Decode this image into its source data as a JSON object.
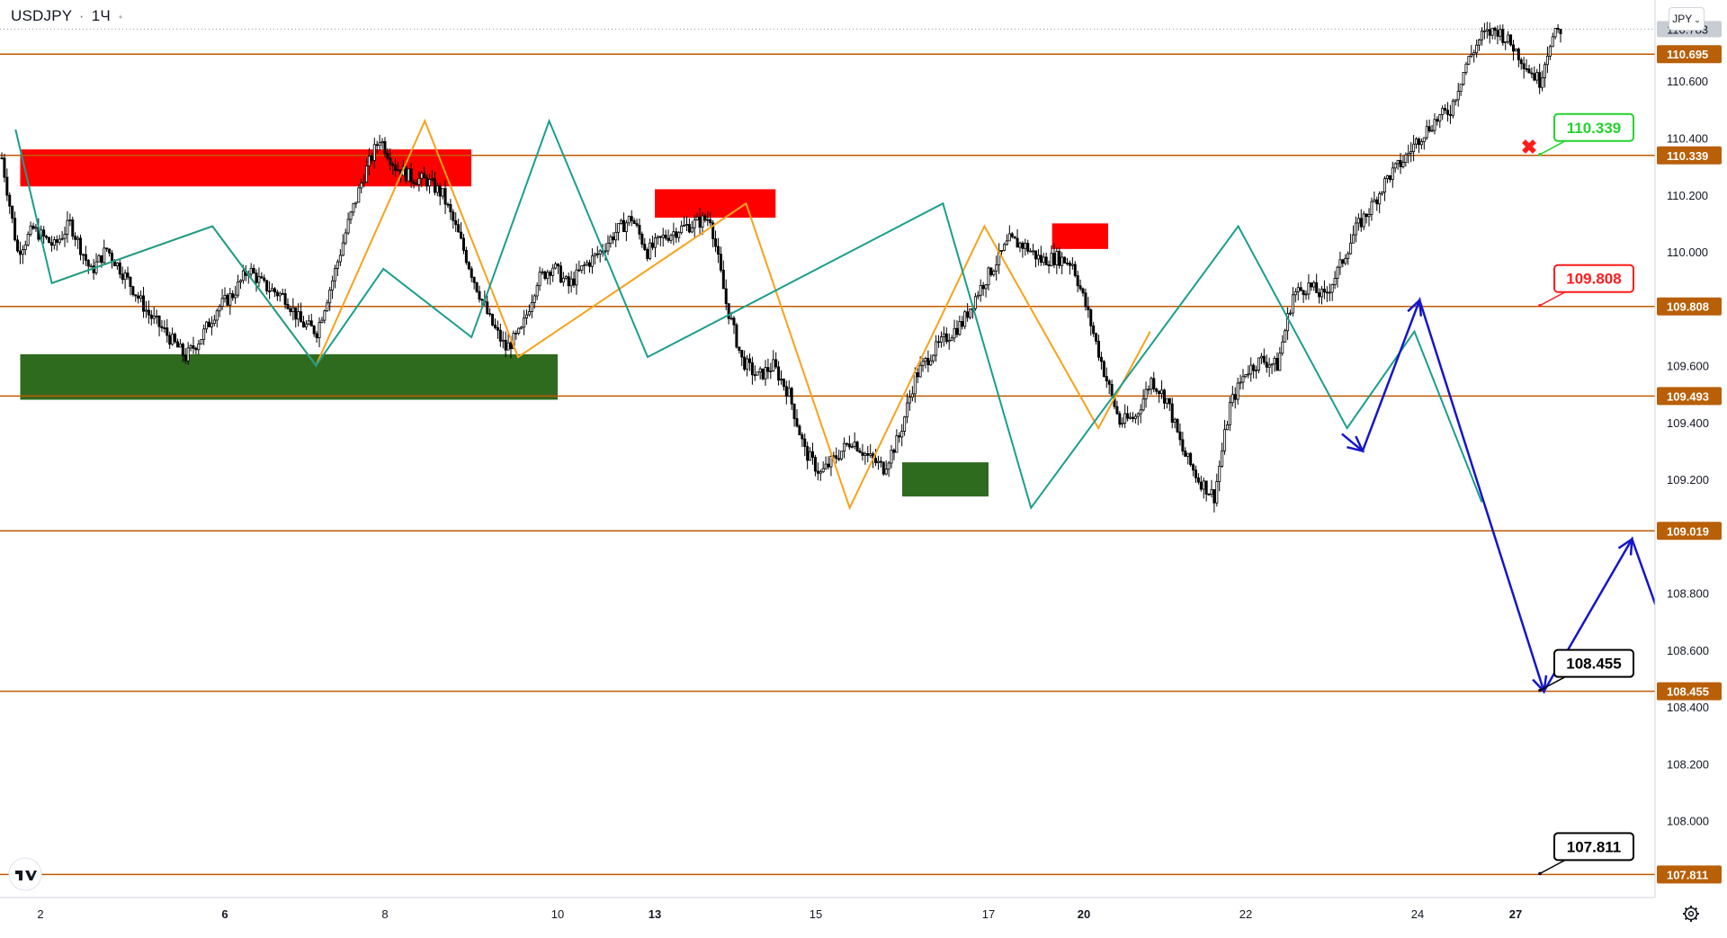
{
  "header": {
    "symbol": "USDJPY",
    "separator": "·",
    "interval": "1Ч",
    "currency_button": "JPY"
  },
  "colors": {
    "background": "#ffffff",
    "level_line": "#c05a00",
    "level_label_bg": "#b85f07",
    "current_price_bg": "#c8ccd3",
    "up_candle": "#ffffff",
    "down_candle": "#000000",
    "resistance_zone": "#ff0000",
    "support_zone": "#2f6b1f",
    "zigzag_orange": "#f7a21b",
    "zigzag_teal": "#1a9e8c",
    "projection_blue": "#1515cc",
    "target_label_border": "#000000",
    "entry_label": "#24d32d",
    "stop_label": "#ff1b1b"
  },
  "chart_data": {
    "type": "candlestick",
    "title": "USDJPY · 1Ч",
    "ylim": [
      107.73,
      110.86
    ],
    "x_ticks": [
      "2",
      "6",
      "8",
      "10",
      "13",
      "15",
      "17",
      "20",
      "22",
      "24",
      "27"
    ],
    "y_ticks": [
      "110.600",
      "110.400",
      "110.200",
      "110.000",
      "109.600",
      "109.400",
      "109.200",
      "108.800",
      "108.600",
      "108.400",
      "108.200",
      "108.000"
    ],
    "current_price": "110.783",
    "horizontal_levels": [
      {
        "price": 110.695,
        "label": "110.695"
      },
      {
        "price": 110.339,
        "label": "110.339"
      },
      {
        "price": 109.808,
        "label": "109.808"
      },
      {
        "price": 109.493,
        "label": "109.493"
      },
      {
        "price": 109.019,
        "label": "109.019"
      },
      {
        "price": 108.455,
        "label": "108.455"
      },
      {
        "price": 107.811,
        "label": "107.811"
      }
    ],
    "zones": [
      {
        "kind": "resistance",
        "from": "1",
        "to": "9",
        "low": 110.23,
        "high": 110.36
      },
      {
        "kind": "resistance",
        "from": "13",
        "to": "14.5",
        "low": 110.12,
        "high": 110.22
      },
      {
        "kind": "resistance",
        "from": "19",
        "to": "20.3",
        "low": 110.01,
        "high": 110.1
      },
      {
        "kind": "support",
        "from": "1",
        "to": "10",
        "low": 109.48,
        "high": 109.64
      },
      {
        "kind": "support",
        "from": "16",
        "to": "17",
        "low": 109.14,
        "high": 109.26
      }
    ],
    "price_path": [
      [
        0,
        110.33
      ],
      [
        6,
        110.0
      ],
      [
        12,
        110.08
      ],
      [
        20,
        110.02
      ],
      [
        26,
        110.1
      ],
      [
        34,
        109.93
      ],
      [
        40,
        110.01
      ],
      [
        48,
        109.9
      ],
      [
        56,
        109.78
      ],
      [
        62,
        109.72
      ],
      [
        70,
        109.63
      ],
      [
        76,
        109.7
      ],
      [
        82,
        109.8
      ],
      [
        88,
        109.85
      ],
      [
        94,
        109.94
      ],
      [
        100,
        109.88
      ],
      [
        108,
        109.84
      ],
      [
        114,
        109.75
      ],
      [
        120,
        109.72
      ],
      [
        126,
        109.9
      ],
      [
        132,
        110.1
      ],
      [
        138,
        110.27
      ],
      [
        144,
        110.4
      ],
      [
        150,
        110.3
      ],
      [
        156,
        110.26
      ],
      [
        162,
        110.25
      ],
      [
        168,
        110.2
      ],
      [
        174,
        110.06
      ],
      [
        180,
        109.9
      ],
      [
        186,
        109.76
      ],
      [
        192,
        109.66
      ],
      [
        198,
        109.72
      ],
      [
        204,
        109.9
      ],
      [
        210,
        109.95
      ],
      [
        216,
        109.88
      ],
      [
        222,
        109.95
      ],
      [
        228,
        110.0
      ],
      [
        234,
        110.07
      ],
      [
        240,
        110.12
      ],
      [
        246,
        110.0
      ],
      [
        252,
        110.05
      ],
      [
        258,
        110.08
      ],
      [
        264,
        110.1
      ],
      [
        270,
        110.12
      ],
      [
        276,
        109.82
      ],
      [
        282,
        109.62
      ],
      [
        288,
        109.56
      ],
      [
        294,
        109.6
      ],
      [
        300,
        109.5
      ],
      [
        306,
        109.3
      ],
      [
        312,
        109.22
      ],
      [
        318,
        109.28
      ],
      [
        324,
        109.34
      ],
      [
        330,
        109.28
      ],
      [
        336,
        109.24
      ],
      [
        342,
        109.35
      ],
      [
        348,
        109.56
      ],
      [
        354,
        109.64
      ],
      [
        360,
        109.7
      ],
      [
        366,
        109.75
      ],
      [
        372,
        109.86
      ],
      [
        378,
        109.95
      ],
      [
        384,
        110.04
      ],
      [
        390,
        110.02
      ],
      [
        396,
        109.97
      ],
      [
        402,
        109.98
      ],
      [
        408,
        109.96
      ],
      [
        414,
        109.78
      ],
      [
        420,
        109.58
      ],
      [
        426,
        109.4
      ],
      [
        432,
        109.42
      ],
      [
        438,
        109.55
      ],
      [
        444,
        109.48
      ],
      [
        450,
        109.3
      ],
      [
        456,
        109.2
      ],
      [
        462,
        109.14
      ],
      [
        468,
        109.46
      ],
      [
        474,
        109.58
      ],
      [
        480,
        109.62
      ],
      [
        486,
        109.6
      ],
      [
        492,
        109.85
      ],
      [
        498,
        109.88
      ],
      [
        504,
        109.84
      ],
      [
        510,
        109.95
      ],
      [
        516,
        110.08
      ],
      [
        522,
        110.16
      ],
      [
        528,
        110.26
      ],
      [
        534,
        110.32
      ],
      [
        540,
        110.4
      ],
      [
        546,
        110.46
      ],
      [
        552,
        110.5
      ],
      [
        558,
        110.66
      ],
      [
        564,
        110.76
      ],
      [
        570,
        110.78
      ],
      [
        576,
        110.72
      ],
      [
        582,
        110.64
      ],
      [
        586,
        110.6
      ],
      [
        590,
        110.74
      ],
      [
        594,
        110.783
      ]
    ],
    "zigzags": [
      {
        "color": "orange",
        "points": [
          [
            1.0,
            109.89
          ],
          [
            4.1,
            110.09
          ],
          [
            6.1,
            109.6
          ],
          [
            8.2,
            110.46
          ],
          [
            10.0,
            109.63
          ],
          [
            14.4,
            110.17
          ],
          [
            16.4,
            109.1
          ],
          [
            19.0,
            110.09
          ],
          [
            21.2,
            109.38
          ],
          [
            22.2,
            109.72
          ]
        ]
      },
      {
        "color": "teal",
        "points": [
          [
            0.3,
            110.43
          ],
          [
            1.0,
            109.89
          ],
          [
            4.1,
            110.09
          ],
          [
            6.1,
            109.6
          ],
          [
            7.4,
            109.94
          ],
          [
            9.1,
            109.7
          ],
          [
            10.6,
            110.46
          ],
          [
            12.5,
            109.63
          ],
          [
            18.2,
            110.17
          ],
          [
            19.9,
            109.1
          ],
          [
            23.9,
            110.09
          ],
          [
            26.0,
            109.38
          ],
          [
            27.3,
            109.72
          ],
          [
            28.6,
            109.12
          ]
        ]
      }
    ],
    "projection": [
      [
        25.9,
        109.36
      ],
      [
        26.3,
        109.3
      ],
      [
        27.4,
        109.83
      ],
      [
        29.8,
        108.455
      ],
      [
        31.5,
        108.99
      ],
      [
        33.6,
        107.92
      ]
    ],
    "callouts": [
      {
        "label": "110.339",
        "kind": "entry",
        "price": 110.339
      },
      {
        "label": "109.808",
        "kind": "stop",
        "price": 109.808
      },
      {
        "label": "108.455",
        "kind": "target",
        "price": 108.455
      },
      {
        "label": "107.811",
        "kind": "target",
        "price": 107.811
      }
    ],
    "invalidation_marker": "x-mark-icon"
  }
}
